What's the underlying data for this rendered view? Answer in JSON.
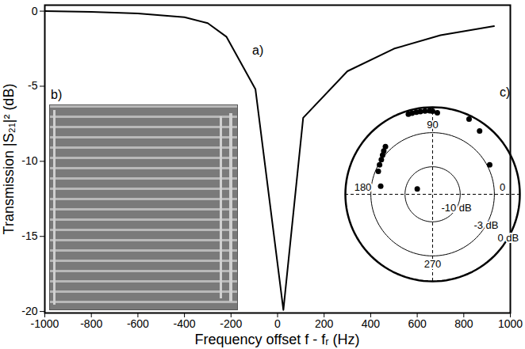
{
  "chart_data": [
    {
      "type": "line",
      "annotations": [
        "a)"
      ],
      "x_label": "Frequency offset f - fᵣ (Hz)",
      "y_label": "Transmission |S₂₁|² (dB)",
      "x": [
        -1000,
        -800,
        -600,
        -400,
        -300,
        -220,
        -95,
        25,
        110,
        300,
        500,
        700,
        930
      ],
      "values": [
        0,
        -0.05,
        -0.15,
        -0.4,
        -0.8,
        -1.7,
        -5.2,
        -19.9,
        -7.1,
        -4.0,
        -2.5,
        -1.6,
        -1.0
      ],
      "color": "#000000",
      "xlim": [
        -1000,
        1000
      ],
      "ylim": [
        -20.1,
        0.4
      ],
      "xticks": [
        -1000,
        -800,
        -600,
        -400,
        -200,
        0,
        200,
        400,
        600,
        800,
        1000
      ],
      "yticks": [
        -20,
        -15,
        -10,
        -5,
        0
      ]
    },
    {
      "type": "image",
      "title": "b)"
    },
    {
      "type": "polar_scatter",
      "title": "c)",
      "rings": [
        {
          "value": -10,
          "label": "-10 dB"
        },
        {
          "value": -3,
          "label": "-3 dB"
        },
        {
          "value": 0,
          "label": "0 dB"
        }
      ],
      "angle_ticks": [
        0,
        90,
        180,
        270
      ],
      "amplitude_db": [
        -0.35,
        -0.35,
        -0.35,
        -0.35,
        -0.35,
        -0.35,
        -0.4,
        -0.55,
        -0.35,
        -0.86,
        -2.66,
        -2.27,
        -2.5,
        -2.74,
        -2.98,
        -3.15,
        -3.4,
        -4.4,
        -14.6
      ],
      "phase_deg": [
        106.8,
        104.2,
        101.2,
        98.4,
        95.2,
        92.0,
        90.0,
        86.7,
        64.2,
        53.5,
        27.3,
        134.6,
        138.3,
        141.8,
        145.9,
        150.9,
        157.0,
        171.0,
        161.0
      ],
      "color": "#000000"
    }
  ]
}
